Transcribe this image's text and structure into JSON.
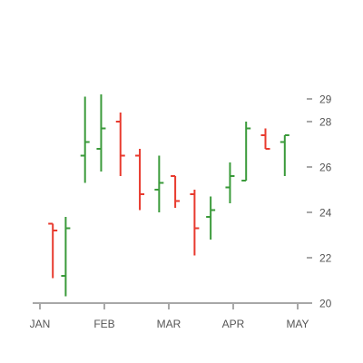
{
  "chart_data": {
    "type": "ohlc",
    "title": "",
    "xlabel": "",
    "ylabel": "",
    "x_ticks": [
      "JAN",
      "FEB",
      "MAR",
      "APR",
      "MAY"
    ],
    "y_ticks": [
      20,
      22,
      24,
      26,
      28,
      29
    ],
    "ylim": [
      20,
      29.6
    ],
    "y_axis_side": "right",
    "colors": {
      "up": "#3a9a3a",
      "down": "#e83a2e",
      "axis": "#a8a8a8",
      "text": "#555555"
    },
    "candles": [
      {
        "x": 0.2,
        "open": 23.5,
        "high": 23.5,
        "low": 21.1,
        "close": 23.2
      },
      {
        "x": 0.4,
        "open": 21.2,
        "high": 23.8,
        "low": 20.3,
        "close": 23.3
      },
      {
        "x": 0.7,
        "open": 26.5,
        "high": 29.1,
        "low": 25.3,
        "close": 27.1
      },
      {
        "x": 0.95,
        "open": 26.8,
        "high": 29.2,
        "low": 25.8,
        "close": 27.7
      },
      {
        "x": 1.25,
        "open": 28.0,
        "high": 28.4,
        "low": 25.6,
        "close": 26.5
      },
      {
        "x": 1.55,
        "open": 26.5,
        "high": 26.8,
        "low": 24.1,
        "close": 24.8
      },
      {
        "x": 1.85,
        "open": 25.0,
        "high": 26.5,
        "low": 24.0,
        "close": 25.3
      },
      {
        "x": 2.1,
        "open": 25.6,
        "high": 25.6,
        "low": 24.2,
        "close": 24.5
      },
      {
        "x": 2.4,
        "open": 24.8,
        "high": 25.0,
        "low": 22.1,
        "close": 23.3
      },
      {
        "x": 2.65,
        "open": 23.8,
        "high": 24.7,
        "low": 22.8,
        "close": 24.1
      },
      {
        "x": 2.95,
        "open": 25.1,
        "high": 26.2,
        "low": 24.4,
        "close": 25.6
      },
      {
        "x": 3.2,
        "open": 25.4,
        "high": 28.0,
        "low": 25.4,
        "close": 27.7
      },
      {
        "x": 3.5,
        "open": 27.4,
        "high": 27.7,
        "low": 26.8,
        "close": 26.8
      },
      {
        "x": 3.8,
        "open": 27.1,
        "high": 27.4,
        "low": 25.6,
        "close": 27.4
      }
    ]
  }
}
